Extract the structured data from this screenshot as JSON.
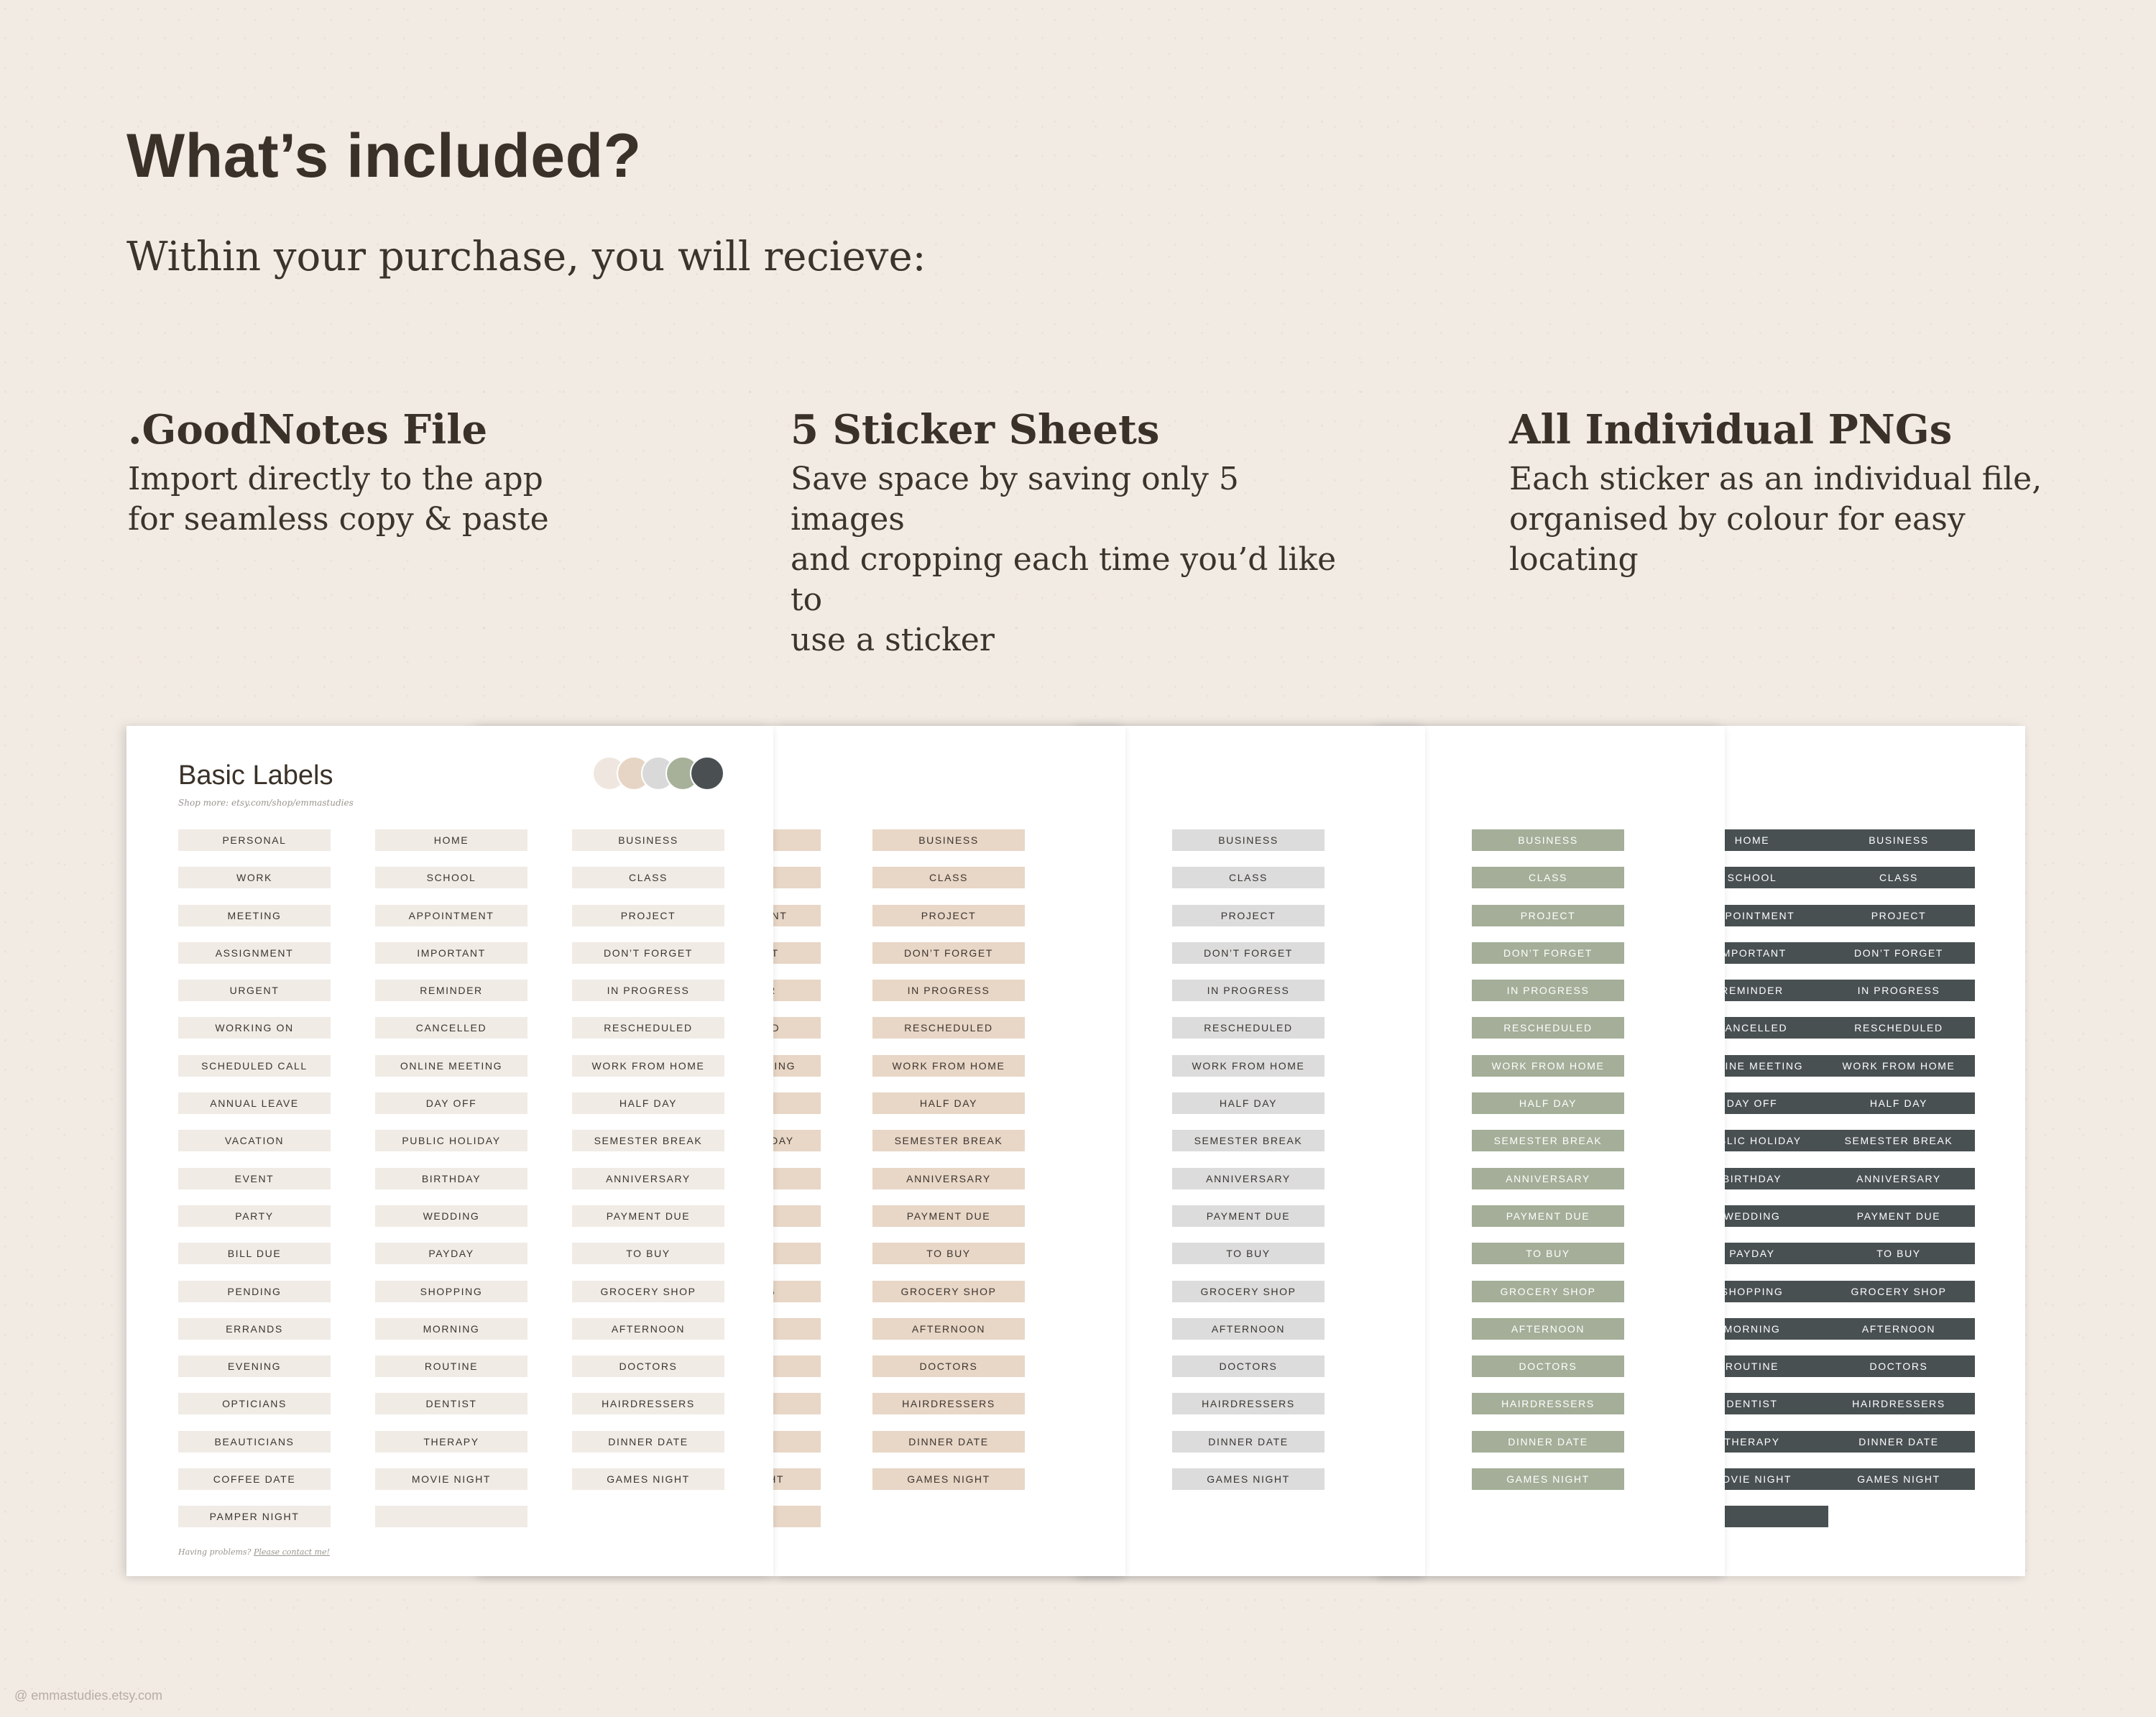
{
  "heading": "What’s included?",
  "subheading": "Within your purchase, you will recieve:",
  "features": [
    {
      "title": ".GoodNotes File",
      "lines": [
        "Import directly to the app",
        "for seamless copy & paste"
      ]
    },
    {
      "title": "5 Sticker Sheets",
      "lines": [
        "Save space by saving only 5 images",
        "and cropping each time you’d like to",
        "use a sticker"
      ]
    },
    {
      "title": "All Individual PNGs",
      "lines": [
        "Each sticker as an individual file,",
        "organised by colour for easy locating"
      ]
    }
  ],
  "sheet": {
    "title": "Basic Labels",
    "shop_note": "Shop more: etsy.com/shop/emmastudies",
    "help_prefix": "Having problems?",
    "help_link": "Please contact me!",
    "swatch_colors": [
      "#efe7df",
      "#e6d5c5",
      "#d9d9d9",
      "#a7b19a",
      "#4a5052"
    ],
    "columns": [
      [
        "PERSONAL",
        "WORK",
        "MEETING",
        "ASSIGNMENT",
        "URGENT",
        "WORKING ON",
        "SCHEDULED CALL",
        "ANNUAL LEAVE",
        "VACATION",
        "EVENT",
        "PARTY",
        "BILL DUE",
        "PENDING",
        "ERRANDS",
        "EVENING",
        "OPTICIANS",
        "BEAUTICIANS",
        "COFFEE DATE",
        "PAMPER NIGHT"
      ],
      [
        "HOME",
        "SCHOOL",
        "APPOINTMENT",
        "IMPORTANT",
        "REMINDER",
        "CANCELLED",
        "ONLINE MEETING",
        "DAY OFF",
        "PUBLIC HOLIDAY",
        "BIRTHDAY",
        "WEDDING",
        "PAYDAY",
        "SHOPPING",
        "MORNING",
        "ROUTINE",
        "DENTIST",
        "THERAPY",
        "MOVIE NIGHT",
        ""
      ],
      [
        "BUSINESS",
        "CLASS",
        "PROJECT",
        "DON’T FORGET",
        "IN PROGRESS",
        "RESCHEDULED",
        "WORK FROM HOME",
        "HALF DAY",
        "SEMESTER BREAK",
        "ANNIVERSARY",
        "PAYMENT DUE",
        "TO BUY",
        "GROCERY SHOP",
        "AFTERNOON",
        "DOCTORS",
        "HAIRDRESSERS",
        "DINNER DATE",
        "GAMES NIGHT"
      ]
    ]
  },
  "sheet_variants": [
    {
      "name": "cream",
      "label_bg": "#f1ebe5",
      "label_text": "#3a3530"
    },
    {
      "name": "beige",
      "label_bg": "#e8d6c6",
      "label_text": "#3a3530"
    },
    {
      "name": "grey",
      "label_bg": "#dcdcdc",
      "label_text": "#3a3530"
    },
    {
      "name": "sage",
      "label_bg": "#a4ae98",
      "label_text": "#ffffff"
    },
    {
      "name": "charcoal",
      "label_bg": "#495052",
      "label_text": "#ffffff"
    }
  ],
  "watermark": "@ emmastudies.etsy.com"
}
